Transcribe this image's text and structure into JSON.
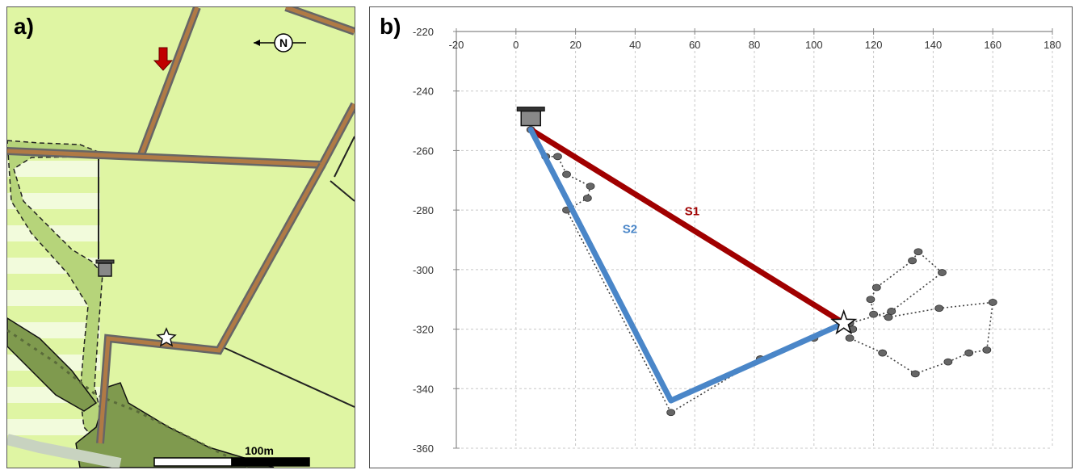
{
  "panels": {
    "map_tag": "a)",
    "chart_tag": "b)"
  },
  "map": {
    "north_label": "N",
    "scale_label": "100m",
    "colors": {
      "field": "#dff5a3",
      "road_fill": "#b07a45",
      "road_edge": "#666666",
      "wetland": "#a8c96a",
      "forest": "#7f9a4e",
      "arrow": "#c00000"
    }
  },
  "chart_data": {
    "type": "scatter",
    "title": "",
    "xlabel": "",
    "ylabel": "",
    "xlim": [
      -20,
      180
    ],
    "ylim": [
      -360,
      -220
    ],
    "xticks": [
      -20,
      0,
      20,
      40,
      60,
      80,
      100,
      120,
      140,
      160,
      180
    ],
    "yticks": [
      -220,
      -240,
      -260,
      -280,
      -300,
      -320,
      -340,
      -360
    ],
    "x_axis_position": "top",
    "grid": true,
    "feeder": {
      "x": 5,
      "y": -250
    },
    "target": {
      "x": 110,
      "y": -318
    },
    "series": [
      {
        "name": "S1",
        "color": "#a00000",
        "points": [
          [
            5,
            -253
          ],
          [
            110,
            -318
          ]
        ]
      },
      {
        "name": "S2",
        "color": "#4a86c8",
        "points": [
          [
            5,
            -253
          ],
          [
            52,
            -344
          ],
          [
            110,
            -318
          ]
        ]
      }
    ],
    "track_points": [
      [
        5,
        -253
      ],
      [
        10,
        -262
      ],
      [
        14,
        -262
      ],
      [
        17,
        -268
      ],
      [
        25,
        -272
      ],
      [
        24,
        -276
      ],
      [
        17,
        -280
      ],
      [
        52,
        -348
      ],
      [
        82,
        -330
      ],
      [
        110,
        -318
      ],
      [
        113,
        -320
      ],
      [
        112,
        -323
      ],
      [
        123,
        -328
      ],
      [
        134,
        -335
      ],
      [
        145,
        -331
      ],
      [
        152,
        -328
      ],
      [
        158,
        -327
      ],
      [
        160,
        -311
      ],
      [
        142,
        -313
      ],
      [
        125,
        -316
      ],
      [
        120,
        -315
      ],
      [
        119,
        -310
      ],
      [
        121,
        -306
      ],
      [
        133,
        -297
      ],
      [
        135,
        -294
      ],
      [
        143,
        -301
      ],
      [
        126,
        -314
      ],
      [
        112,
        -318
      ],
      [
        100,
        -323
      ]
    ],
    "track_color": "#444444"
  }
}
